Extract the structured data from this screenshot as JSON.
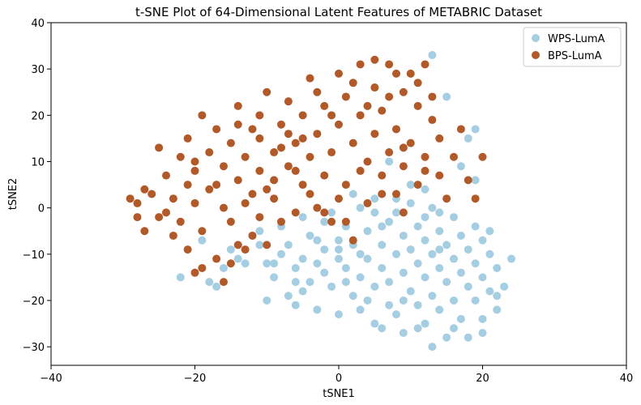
{
  "chart_data": {
    "type": "scatter",
    "title": "t-SNE Plot of 64-Dimensional Latent Features of METABRIC Dataset",
    "xlabel": "tSNE1",
    "ylabel": "tSNE2",
    "xlim": [
      -40,
      40
    ],
    "ylim": [
      -34,
      40
    ],
    "xticks": [
      -40,
      -20,
      0,
      20,
      40
    ],
    "yticks": [
      -30,
      -20,
      -10,
      0,
      10,
      20,
      30,
      40
    ],
    "grid": false,
    "legend_position": "top-right",
    "series": [
      {
        "name": "WPS-LumA",
        "color": "#a6cee3",
        "points": [
          [
            -22,
            -15
          ],
          [
            -19,
            -7
          ],
          [
            -17,
            -17
          ],
          [
            -16,
            -13
          ],
          [
            -15,
            -9
          ],
          [
            -13,
            -12
          ],
          [
            -12,
            -6
          ],
          [
            -11,
            -8
          ],
          [
            -10,
            -20
          ],
          [
            -10,
            -12
          ],
          [
            -9,
            -15
          ],
          [
            -8,
            -4
          ],
          [
            -8,
            -10
          ],
          [
            -7,
            -19
          ],
          [
            -7,
            -8
          ],
          [
            -6,
            -21
          ],
          [
            -6,
            -13
          ],
          [
            -5,
            -2
          ],
          [
            -5,
            -18
          ],
          [
            -5,
            -11
          ],
          [
            -4,
            -6
          ],
          [
            -4,
            -16
          ],
          [
            -3,
            -12
          ],
          [
            -3,
            -22
          ],
          [
            -2,
            -9
          ],
          [
            -2,
            -14
          ],
          [
            -2,
            -3
          ],
          [
            -1,
            -17
          ],
          [
            0,
            -7
          ],
          [
            0,
            -11
          ],
          [
            0,
            -23
          ],
          [
            1,
            -13
          ],
          [
            1,
            -4
          ],
          [
            2,
            -19
          ],
          [
            2,
            -8
          ],
          [
            3,
            -15
          ],
          [
            3,
            0
          ],
          [
            3,
            -22
          ],
          [
            4,
            -11
          ],
          [
            4,
            -5
          ],
          [
            5,
            -17
          ],
          [
            5,
            -1
          ],
          [
            5,
            -25
          ],
          [
            6,
            -13
          ],
          [
            6,
            -8
          ],
          [
            7,
            -21
          ],
          [
            7,
            -3
          ],
          [
            7,
            -16
          ],
          [
            8,
            -10
          ],
          [
            8,
            -1
          ],
          [
            8,
            -23
          ],
          [
            9,
            -14
          ],
          [
            9,
            -6
          ],
          [
            9,
            -27
          ],
          [
            10,
            -18
          ],
          [
            10,
            -9
          ],
          [
            10,
            1
          ],
          [
            11,
            -12
          ],
          [
            11,
            -21
          ],
          [
            11,
            -4
          ],
          [
            12,
            -15
          ],
          [
            12,
            -7
          ],
          [
            12,
            -25
          ],
          [
            13,
            -19
          ],
          [
            13,
            -10
          ],
          [
            13,
            0
          ],
          [
            14,
            -13
          ],
          [
            14,
            -22
          ],
          [
            14,
            -5
          ],
          [
            15,
            -16
          ],
          [
            15,
            -8
          ],
          [
            15,
            -28
          ],
          [
            16,
            -11
          ],
          [
            16,
            -20
          ],
          [
            16,
            -2
          ],
          [
            17,
            -14
          ],
          [
            17,
            -6
          ],
          [
            17,
            -24
          ],
          [
            18,
            -17
          ],
          [
            18,
            -9
          ],
          [
            18,
            15
          ],
          [
            19,
            -12
          ],
          [
            19,
            -20
          ],
          [
            19,
            -4
          ],
          [
            20,
            -15
          ],
          [
            20,
            -7
          ],
          [
            20,
            -27
          ],
          [
            21,
            -10
          ],
          [
            21,
            -18
          ],
          [
            21,
            -5
          ],
          [
            22,
            -13
          ],
          [
            22,
            -22
          ],
          [
            23,
            -17
          ],
          [
            24,
            -11
          ],
          [
            7,
            10
          ],
          [
            8,
            2
          ],
          [
            10,
            5
          ],
          [
            12,
            4
          ],
          [
            13,
            33
          ],
          [
            14,
            -1
          ],
          [
            15,
            24
          ],
          [
            17,
            9
          ],
          [
            19,
            17
          ],
          [
            -9,
            -12
          ],
          [
            -6,
            -16
          ],
          [
            -3,
            -7
          ],
          [
            1,
            -16
          ],
          [
            4,
            -20
          ],
          [
            6,
            -26
          ],
          [
            9,
            -20
          ],
          [
            11,
            -26
          ],
          [
            13,
            -30
          ],
          [
            16,
            -26
          ],
          [
            18,
            -28
          ],
          [
            20,
            -24
          ],
          [
            22,
            -19
          ],
          [
            2,
            3
          ],
          [
            5,
            2
          ],
          [
            -11,
            -5
          ],
          [
            -14,
            -11
          ],
          [
            -18,
            -16
          ],
          [
            3,
            -10
          ],
          [
            6,
            -4
          ],
          [
            12,
            -2
          ],
          [
            -1,
            -1
          ],
          [
            0,
            -9
          ],
          [
            14,
            -9
          ],
          [
            19,
            6
          ]
        ]
      },
      {
        "name": "BPS-LumA",
        "color": "#b15928",
        "points": [
          [
            -29,
            2
          ],
          [
            -28,
            1
          ],
          [
            -27,
            4
          ],
          [
            -27,
            -5
          ],
          [
            -26,
            3
          ],
          [
            -25,
            13
          ],
          [
            -25,
            -2
          ],
          [
            -24,
            7
          ],
          [
            -23,
            -6
          ],
          [
            -23,
            2
          ],
          [
            -22,
            11
          ],
          [
            -22,
            -3
          ],
          [
            -21,
            15
          ],
          [
            -21,
            5
          ],
          [
            -20,
            -14
          ],
          [
            -20,
            8
          ],
          [
            -20,
            1
          ],
          [
            -19,
            20
          ],
          [
            -19,
            -5
          ],
          [
            -18,
            12
          ],
          [
            -18,
            4
          ],
          [
            -17,
            17
          ],
          [
            -17,
            -11
          ],
          [
            -16,
            9
          ],
          [
            -16,
            0
          ],
          [
            -15,
            14
          ],
          [
            -15,
            -3
          ],
          [
            -14,
            22
          ],
          [
            -14,
            6
          ],
          [
            -14,
            -8
          ],
          [
            -13,
            11
          ],
          [
            -13,
            1
          ],
          [
            -12,
            17
          ],
          [
            -12,
            -6
          ],
          [
            -11,
            8
          ],
          [
            -11,
            15
          ],
          [
            -10,
            4
          ],
          [
            -10,
            25
          ],
          [
            -10,
            -8
          ],
          [
            -9,
            12
          ],
          [
            -9,
            2
          ],
          [
            -8,
            18
          ],
          [
            -8,
            -3
          ],
          [
            -7,
            9
          ],
          [
            -7,
            23
          ],
          [
            -6,
            14
          ],
          [
            -6,
            -1
          ],
          [
            -5,
            5
          ],
          [
            -5,
            20
          ],
          [
            -4,
            11
          ],
          [
            -4,
            28
          ],
          [
            -3,
            0
          ],
          [
            -3,
            16
          ],
          [
            -2,
            7
          ],
          [
            -2,
            22
          ],
          [
            -1,
            12
          ],
          [
            -1,
            -3
          ],
          [
            0,
            29
          ],
          [
            0,
            18
          ],
          [
            1,
            5
          ],
          [
            1,
            24
          ],
          [
            2,
            14
          ],
          [
            2,
            -7
          ],
          [
            3,
            20
          ],
          [
            3,
            31
          ],
          [
            4,
            10
          ],
          [
            4,
            1
          ],
          [
            5,
            16
          ],
          [
            5,
            26
          ],
          [
            6,
            7
          ],
          [
            6,
            21
          ],
          [
            7,
            31
          ],
          [
            7,
            12
          ],
          [
            8,
            3
          ],
          [
            8,
            17
          ],
          [
            9,
            25
          ],
          [
            9,
            9
          ],
          [
            10,
            29
          ],
          [
            10,
            14
          ],
          [
            11,
            5
          ],
          [
            11,
            22
          ],
          [
            12,
            31
          ],
          [
            12,
            11
          ],
          [
            13,
            19
          ],
          [
            14,
            7
          ],
          [
            14,
            15
          ],
          [
            15,
            2
          ],
          [
            16,
            11
          ],
          [
            17,
            17
          ],
          [
            18,
            6
          ],
          [
            19,
            2
          ],
          [
            20,
            11
          ],
          [
            -28,
            -2
          ],
          [
            -24,
            -1
          ],
          [
            -21,
            -9
          ],
          [
            -19,
            -13
          ],
          [
            -16,
            -16
          ],
          [
            -13,
            -9
          ],
          [
            -11,
            -2
          ],
          [
            -9,
            6
          ],
          [
            -6,
            8
          ],
          [
            -4,
            3
          ],
          [
            -2,
            -1
          ],
          [
            0,
            2
          ],
          [
            1,
            -3
          ],
          [
            3,
            8
          ],
          [
            6,
            3
          ],
          [
            9,
            -1
          ],
          [
            -15,
            -12
          ],
          [
            -12,
            3
          ],
          [
            -20,
            10
          ],
          [
            -17,
            5
          ],
          [
            -8,
            13
          ],
          [
            -5,
            15
          ],
          [
            -3,
            25
          ],
          [
            2,
            27
          ],
          [
            5,
            32
          ],
          [
            8,
            29
          ],
          [
            11,
            27
          ],
          [
            13,
            24
          ],
          [
            -14,
            18
          ],
          [
            -11,
            20
          ],
          [
            -7,
            16
          ],
          [
            -1,
            20
          ],
          [
            4,
            22
          ],
          [
            7,
            24
          ],
          [
            9,
            13
          ],
          [
            12,
            8
          ]
        ]
      }
    ]
  }
}
